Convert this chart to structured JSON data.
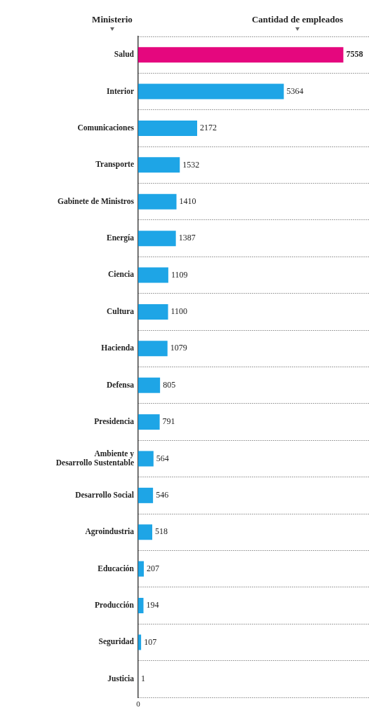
{
  "chart_data": {
    "type": "bar",
    "orientation": "horizontal",
    "xlabel": "Cantidad de empleados",
    "ylabel": "Ministerio",
    "categories": [
      "Salud",
      "Interior",
      "Comunicaciones",
      "Transporte",
      "Gabinete de Ministros",
      "Energía",
      "Ciencia",
      "Cultura",
      "Hacienda",
      "Defensa",
      "Presidencia",
      "Ambiente y Desarrollo Sustentable",
      "Desarrollo Social",
      "Agroindustria",
      "Educación",
      "Producción",
      "Seguridad",
      "Justicia"
    ],
    "values": [
      7558,
      5364,
      2172,
      1532,
      1410,
      1387,
      1109,
      1100,
      1079,
      805,
      791,
      564,
      546,
      518,
      207,
      194,
      107,
      1
    ],
    "colors": [
      "#e5077e",
      "#1ea5e6",
      "#1ea5e6",
      "#1ea5e6",
      "#1ea5e6",
      "#1ea5e6",
      "#1ea5e6",
      "#1ea5e6",
      "#1ea5e6",
      "#1ea5e6",
      "#1ea5e6",
      "#1ea5e6",
      "#1ea5e6",
      "#1ea5e6",
      "#1ea5e6",
      "#1ea5e6",
      "#1ea5e6",
      "#1ea5e6"
    ],
    "annotations": [
      "0"
    ],
    "grid": "y",
    "line_style": "dotted",
    "data_labels": true,
    "legend": false
  }
}
